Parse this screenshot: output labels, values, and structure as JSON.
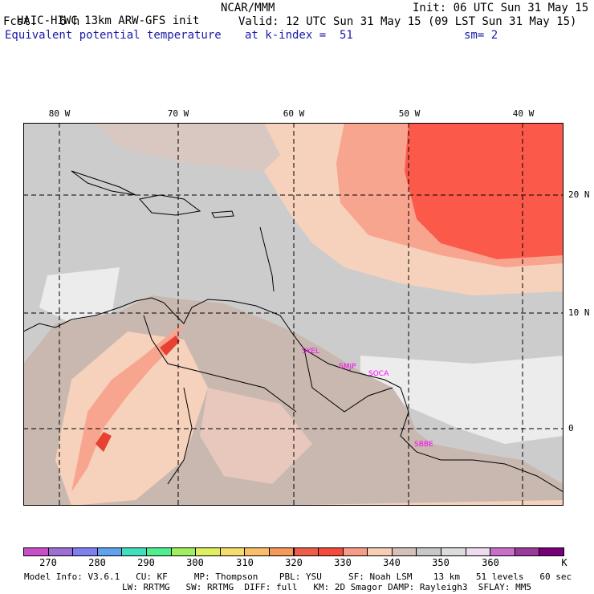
{
  "header": {
    "title_left": "HAIC-HIWC 13km ARW-GFS init",
    "title_mid": "NCAR/MMM",
    "init": "Init: 06 UTC Sun 31 May 15",
    "fcst_label": "Fcst:",
    "fcst_value": "6 h",
    "valid": "Valid: 12 UTC Sun 31 May 15 (09 LST Sun 31 May 15)",
    "field": "Equivalent potential temperature",
    "level": "at k-index =  51",
    "smooth": "sm= 2"
  },
  "map": {
    "lon_labels": [
      "80 W",
      "70 W",
      "60 W",
      "50 W",
      "40 W"
    ],
    "lat_labels": [
      "20 N",
      "10 N",
      "0"
    ],
    "stations": [
      "SYEL",
      "SMJP",
      "SOCA",
      "SBBE"
    ],
    "colors": {
      "grey": "#cdcccc",
      "greybrown": "#c8b8b0",
      "peach": "#f6d2bc",
      "salmon": "#f8a58f",
      "red": "#fb5a4b",
      "white": "#ececec",
      "darkred": "#e84032"
    }
  },
  "colorbar": {
    "labels": [
      "270",
      "280",
      "290",
      "300",
      "310",
      "320",
      "330",
      "340",
      "350",
      "360"
    ],
    "unit": "K",
    "colors": [
      "#c84fc8",
      "#9d6fd4",
      "#7f7fef",
      "#5fa3ef",
      "#3fdfbf",
      "#4fef8f",
      "#9fef5f",
      "#dfef5f",
      "#f5dc6d",
      "#f8be6a",
      "#f59a58",
      "#ee5d49",
      "#f44a3c",
      "#f79c88",
      "#f7cdb4",
      "#d6c1ba",
      "#c8c8c8",
      "#dcdcdc",
      "#f0daf0",
      "#c870c8",
      "#9a3a9a",
      "#780078"
    ]
  },
  "footer": {
    "line1": "Model Info: V3.6.1   CU: KF     MP: Thompson    PBL: YSU     SF: Noah LSM    13 km   51 levels   60 sec",
    "line2": "LW: RRTMG   SW: RRTMG  DIFF: full   KM: 2D Smagor DAMP: Rayleigh3  SFLAY: MM5"
  }
}
